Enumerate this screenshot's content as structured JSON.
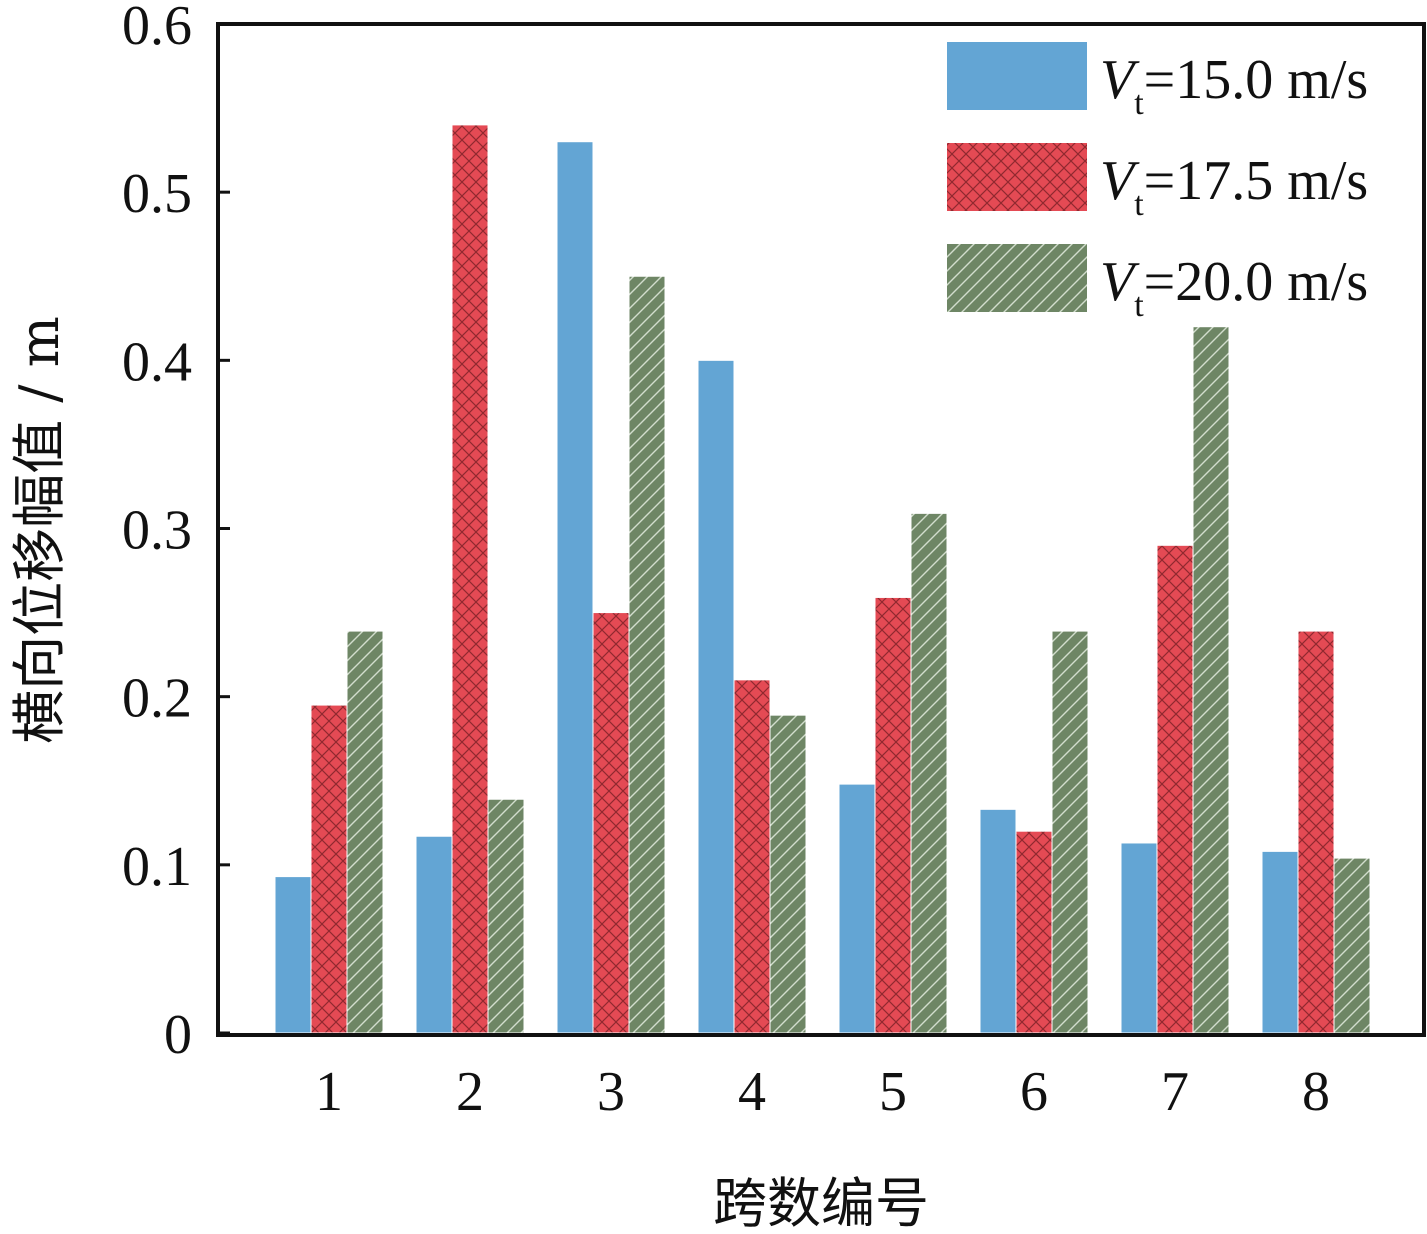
{
  "chart_data": {
    "type": "bar",
    "title": "",
    "xlabel": "跨数编号",
    "ylabel": "横向位移幅值 / m",
    "ylim": [
      0,
      0.6
    ],
    "yticks": [
      "0",
      "0.1",
      "0.2",
      "0.3",
      "0.4",
      "0.5",
      "0.6"
    ],
    "categories": [
      "1",
      "2",
      "3",
      "4",
      "5",
      "6",
      "7",
      "8"
    ],
    "legend_position": "top-right",
    "grid": false,
    "series": [
      {
        "name": "Vt=15.0 m/s",
        "legend_main": "V",
        "legend_sub": "t",
        "legend_rest": "=15.0 m/s",
        "color": "#63a5d4",
        "pattern": "solid",
        "values": [
          0.093,
          0.117,
          0.53,
          0.4,
          0.148,
          0.133,
          0.113,
          0.108
        ]
      },
      {
        "name": "Vt=17.5 m/s",
        "legend_main": "V",
        "legend_sub": "t",
        "legend_rest": "=17.5 m/s",
        "color": "#e44a54",
        "pattern": "crosshatch",
        "values": [
          0.195,
          0.54,
          0.25,
          0.21,
          0.259,
          0.12,
          0.29,
          0.239
        ]
      },
      {
        "name": "Vt=20.0 m/s",
        "legend_main": "V",
        "legend_sub": "t",
        "legend_rest": "=20.0 m/s",
        "color": "#6e8665",
        "pattern": "diagonal",
        "values": [
          0.239,
          0.139,
          0.45,
          0.189,
          0.309,
          0.239,
          0.42,
          0.104
        ]
      }
    ]
  }
}
